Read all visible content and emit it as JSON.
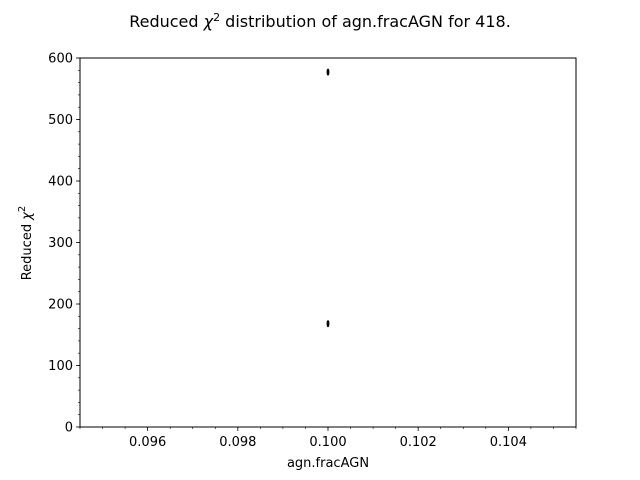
{
  "chart_data": {
    "type": "scatter",
    "title_prefix": "Reduced ",
    "title_chi": "χ",
    "title_sup": "2",
    "title_suffix": " distribution of agn.fracAGN for 418.",
    "xlabel": "agn.fracAGN",
    "ylabel_prefix": "Reduced ",
    "ylabel_chi": "χ",
    "ylabel_sup": "2",
    "xlim": [
      0.0945,
      0.1055
    ],
    "ylim": [
      0,
      600
    ],
    "xticks": [
      0.096,
      0.098,
      0.1,
      0.102,
      0.104
    ],
    "xtick_labels": [
      "0.096",
      "0.098",
      "0.100",
      "0.102",
      "0.104"
    ],
    "yticks": [
      0,
      100,
      200,
      300,
      400,
      500,
      600
    ],
    "ytick_labels": [
      "0",
      "100",
      "200",
      "300",
      "400",
      "500",
      "600"
    ],
    "x_minor_step": 0.0005,
    "y_minor_step": 20,
    "grid": false,
    "marker_color": "#000000",
    "points": [
      {
        "x": 0.1,
        "y": 577
      },
      {
        "x": 0.1,
        "y": 579
      },
      {
        "x": 0.1,
        "y": 575
      },
      {
        "x": 0.1,
        "y": 168
      },
      {
        "x": 0.1,
        "y": 166
      },
      {
        "x": 0.1,
        "y": 170
      }
    ]
  }
}
